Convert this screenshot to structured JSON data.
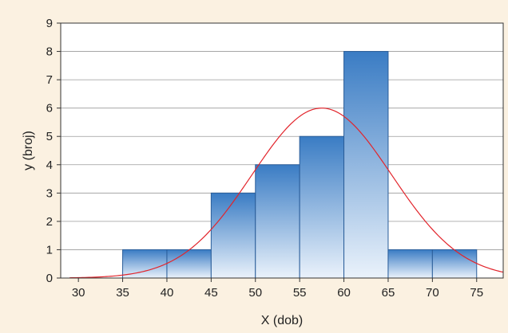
{
  "colors": {
    "background": "#fbf1e1",
    "plot_background": "#ffffff",
    "bar_top": "#3a7cc4",
    "bar_bottom": "#eaf2fb",
    "bar_stroke": "#2a5d99",
    "curve": "#e2242b",
    "grid": "#9a9a9a"
  },
  "chart_data": {
    "type": "bar",
    "subtype": "histogram-with-normal-curve",
    "title": "",
    "xlabel": "X (dob)",
    "ylabel": "y (broj)",
    "xlim": [
      28,
      78
    ],
    "ylim": [
      0,
      9
    ],
    "xticks": [
      30,
      35,
      40,
      45,
      50,
      55,
      60,
      65,
      70,
      75
    ],
    "yticks": [
      0,
      1,
      2,
      3,
      4,
      5,
      6,
      7,
      8,
      9
    ],
    "grid": "horizontal",
    "bins": [
      {
        "from": 35,
        "to": 40,
        "count": 1
      },
      {
        "from": 40,
        "to": 45,
        "count": 1
      },
      {
        "from": 45,
        "to": 50,
        "count": 3
      },
      {
        "from": 50,
        "to": 55,
        "count": 4
      },
      {
        "from": 55,
        "to": 60,
        "count": 5
      },
      {
        "from": 60,
        "to": 65,
        "count": 8
      },
      {
        "from": 65,
        "to": 70,
        "count": 1
      },
      {
        "from": 70,
        "to": 75,
        "count": 1
      }
    ],
    "normal_curve": {
      "mean": 57.5,
      "sd": 7.9,
      "peak": 6.0
    }
  }
}
